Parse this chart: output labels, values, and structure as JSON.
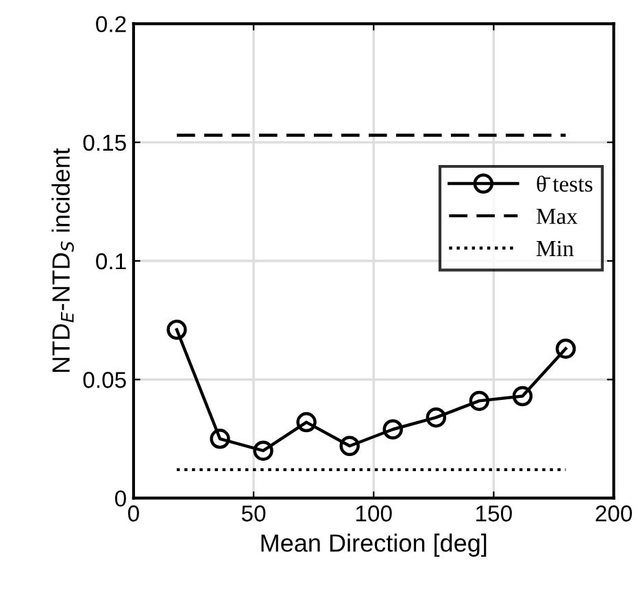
{
  "chart_data": {
    "type": "line",
    "xlabel": "Mean Direction [deg]",
    "ylabel": "NTD$_{E}$-NTD$_{S}$ incident",
    "x": [
      18,
      36,
      54,
      72,
      90,
      108,
      126,
      144,
      162,
      180
    ],
    "series": [
      {
        "name": "θ̄ tests",
        "color": "#000000",
        "marker": "circle",
        "line_style": "solid",
        "values": [
          0.071,
          0.025,
          0.02,
          0.032,
          0.022,
          0.029,
          0.034,
          0.041,
          0.043,
          0.063
        ]
      },
      {
        "name": "Max",
        "color": "#000000",
        "marker": "none",
        "line_style": "dashed",
        "values": [
          0.153,
          0.153,
          0.153,
          0.153,
          0.153,
          0.153,
          0.153,
          0.153,
          0.153,
          0.153
        ]
      },
      {
        "name": "Min",
        "color": "#000000",
        "marker": "none",
        "line_style": "dotted",
        "values": [
          0.012,
          0.012,
          0.012,
          0.012,
          0.012,
          0.012,
          0.012,
          0.012,
          0.012,
          0.012
        ]
      }
    ],
    "xlim": [
      0,
      200
    ],
    "ylim": [
      0,
      0.2
    ],
    "xticks": [
      0,
      50,
      100,
      150,
      200
    ],
    "yticks": [
      0,
      0.05,
      0.1,
      0.15,
      0.2
    ],
    "grid": true,
    "legend": "right"
  }
}
